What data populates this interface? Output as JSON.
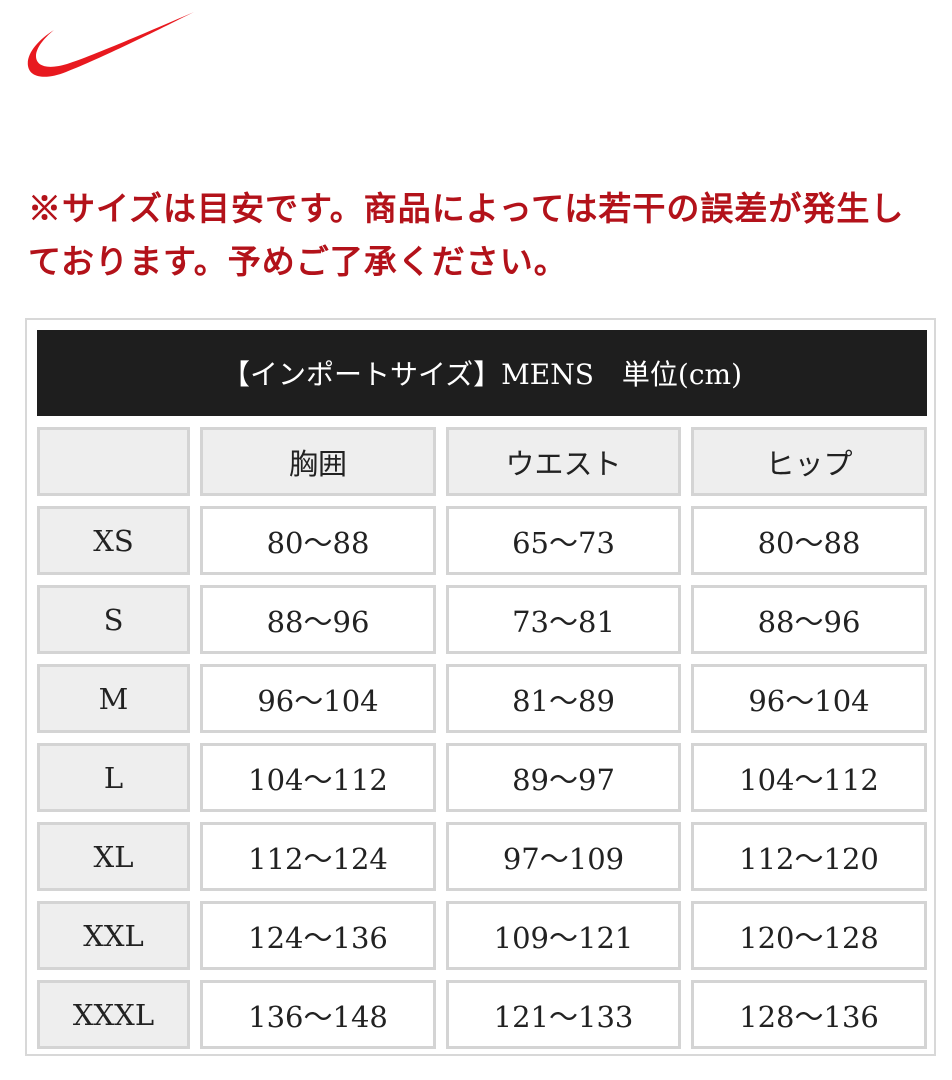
{
  "logo": {
    "name": "nike-swoosh",
    "color": "#e8191f"
  },
  "notice": {
    "line1": "※サイズは目安です。商品によっては若干の誤差が発生し",
    "line2": "ております。予めご了承ください。",
    "color": "#b3121a"
  },
  "table": {
    "title": "【インポートサイズ】MENS　単位(cm)",
    "headers": [
      "",
      "胸囲",
      "ウエスト",
      "ヒップ"
    ],
    "rows": [
      [
        "XS",
        "80〜88",
        "65〜73",
        "80〜88"
      ],
      [
        "S",
        "88〜96",
        "73〜81",
        "88〜96"
      ],
      [
        "M",
        "96〜104",
        "81〜89",
        "96〜104"
      ],
      [
        "L",
        "104〜112",
        "89〜97",
        "104〜112"
      ],
      [
        "XL",
        "112〜124",
        "97〜109",
        "112〜120"
      ],
      [
        "XXL",
        "124〜136",
        "109〜121",
        "120〜128"
      ],
      [
        "XXXL",
        "136〜148",
        "121〜133",
        "128〜136"
      ]
    ]
  }
}
